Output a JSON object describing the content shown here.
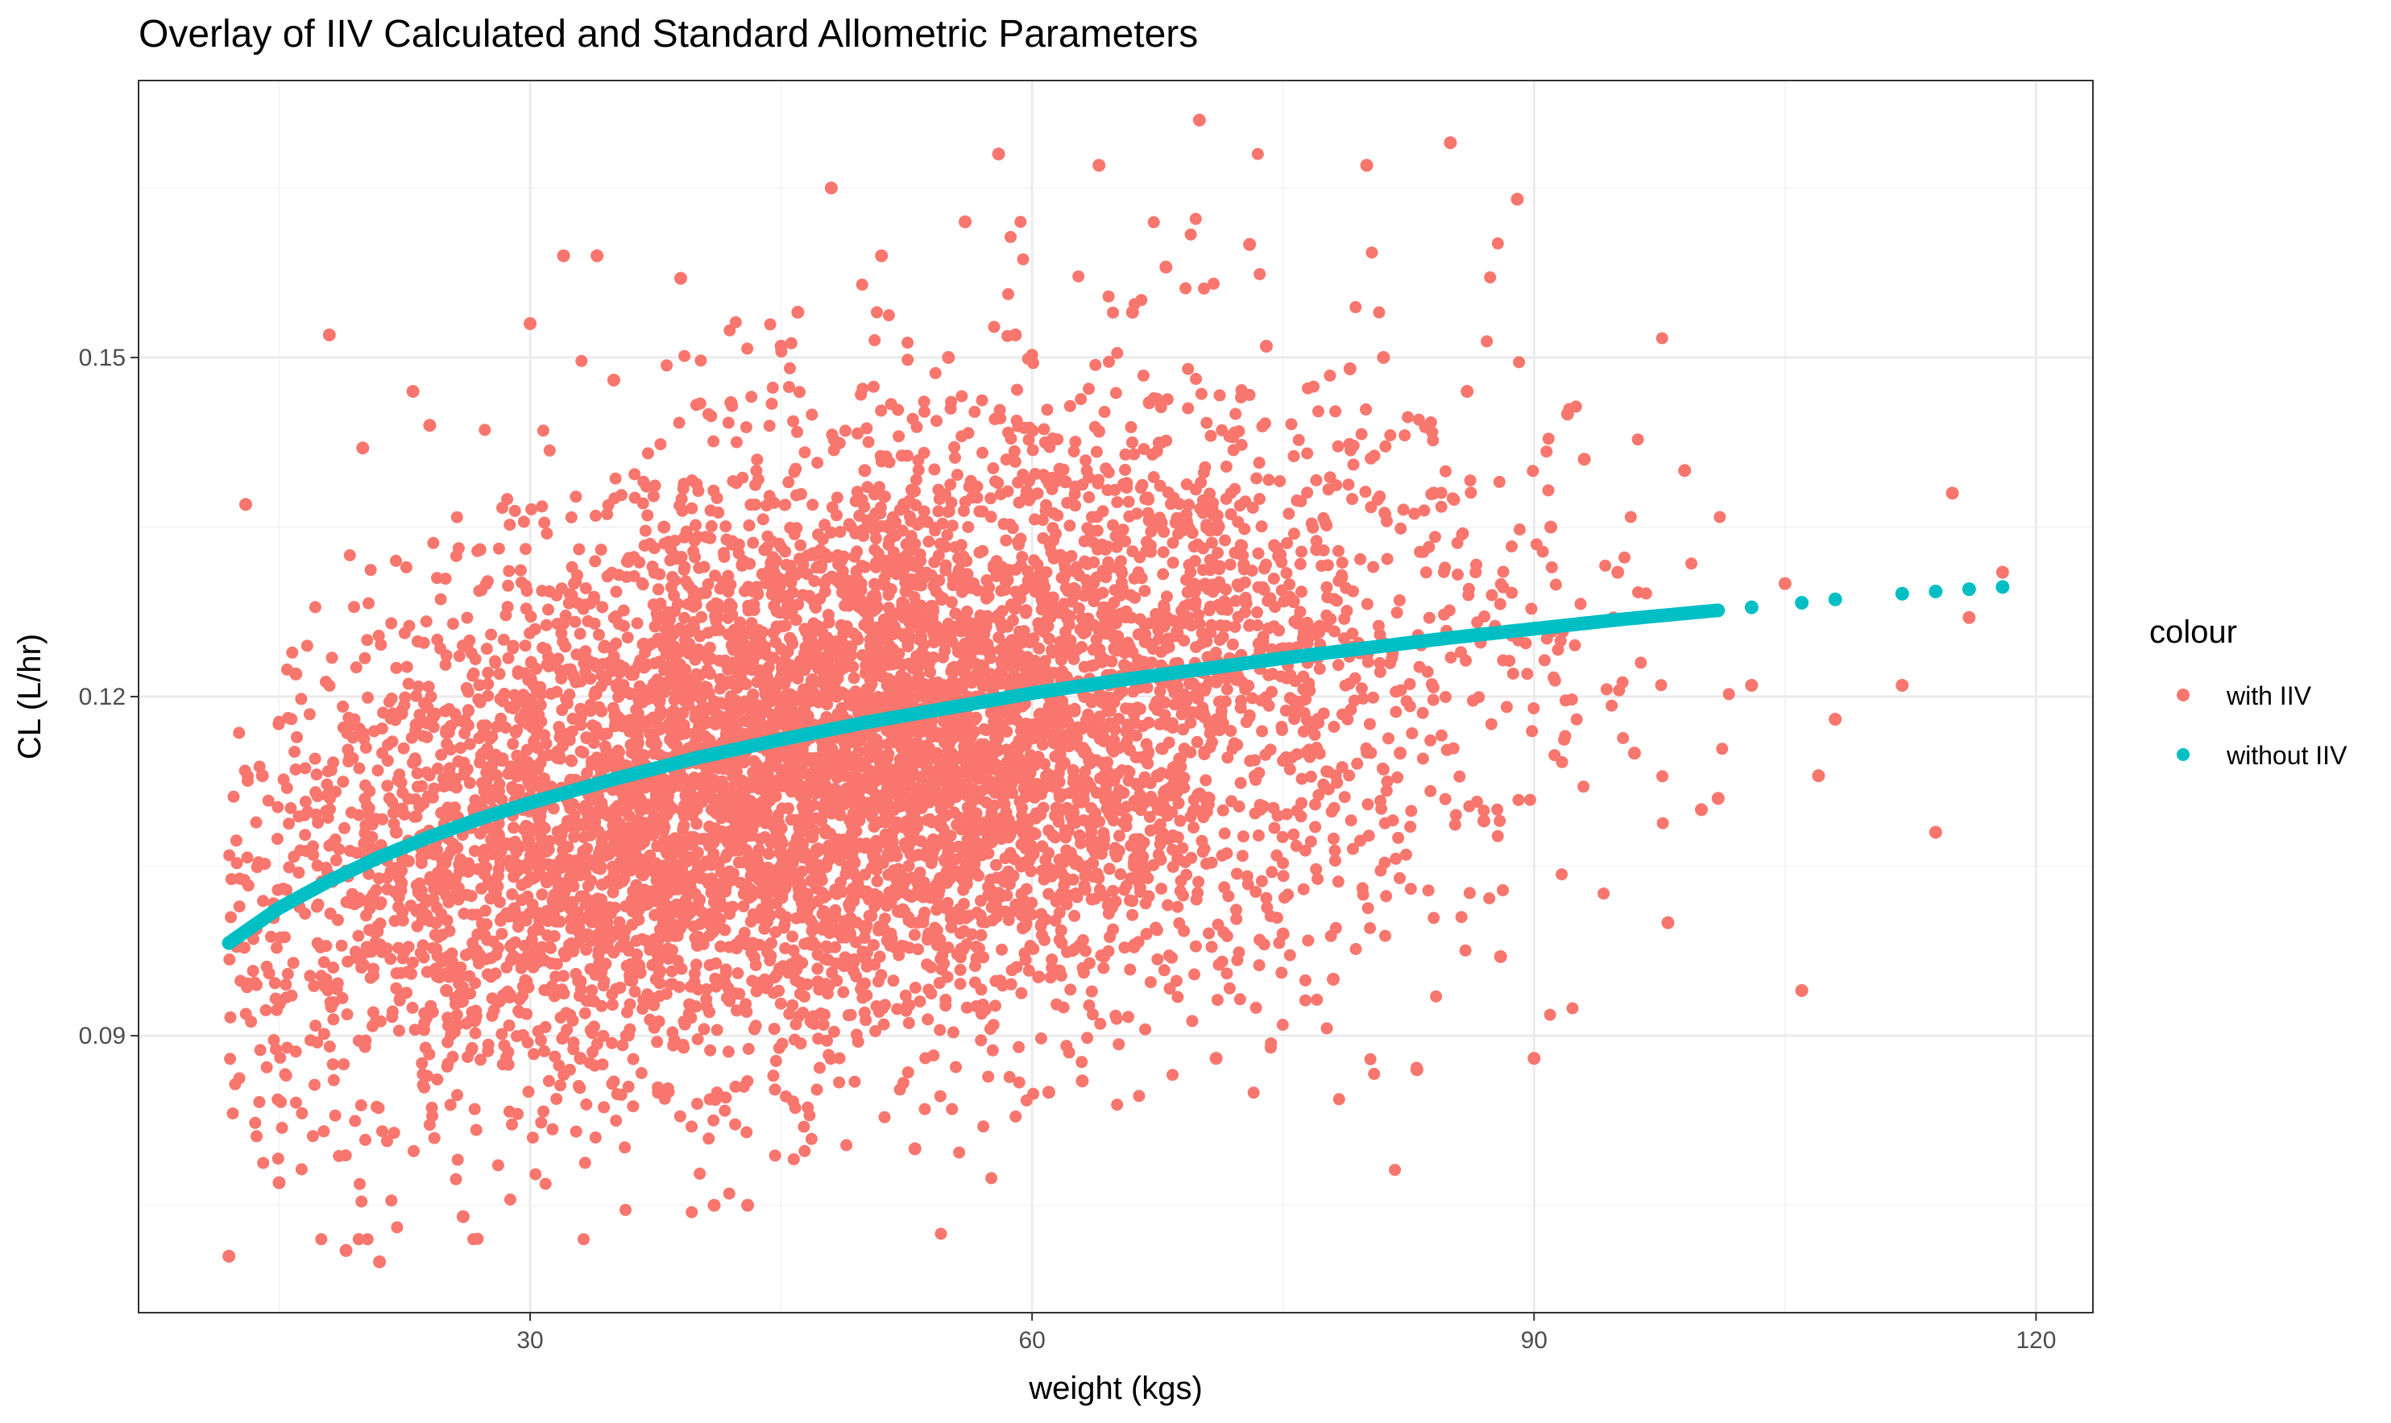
{
  "chart_data": {
    "type": "scatter",
    "title": "Overlay of IIV Calculated and Standard Allometric Parameters",
    "xlabel": "weight (kgs)",
    "ylabel": "CL (L/hr)",
    "xlim": [
      6.6,
      123.4
    ],
    "ylim": [
      0.0655,
      0.1745
    ],
    "x_ticks": [
      30,
      60,
      90,
      120
    ],
    "x_tick_labels": [
      "30",
      "60",
      "90",
      "120"
    ],
    "y_ticks": [
      0.09,
      0.12,
      0.15
    ],
    "y_tick_labels": [
      "0.09",
      "0.12",
      "0.15"
    ],
    "grid": true,
    "legend": {
      "title": "colour",
      "placement": "right",
      "entries": [
        {
          "label": "with IIV",
          "color": "#F8766D"
        },
        {
          "label": "without IIV",
          "color": "#00BFC4"
        }
      ]
    },
    "series": [
      {
        "name": "with IIV",
        "color": "#F8766D",
        "x": [
          12,
          12.5,
          13,
          14,
          15,
          16,
          18,
          20,
          21,
          22,
          24,
          25,
          27,
          29,
          30,
          31,
          32,
          33,
          35,
          36,
          38,
          39,
          40,
          42,
          43,
          44,
          45,
          47,
          48,
          50,
          51,
          52,
          54,
          55,
          56,
          57,
          58,
          60,
          61,
          62,
          64,
          65,
          66,
          68,
          70,
          72,
          73,
          75,
          77,
          79,
          80,
          82,
          84,
          85,
          87,
          89,
          90,
          92,
          95,
          98,
          100,
          103,
          106,
          108,
          112,
          114,
          116,
          118,
          19,
          23,
          26,
          34,
          41,
          46,
          53,
          59,
          63,
          67,
          71,
          74,
          78,
          81,
          83,
          86,
          88,
          91,
          93,
          96,
          99,
          101,
          105,
          107,
          115
        ],
        "y": [
          0.0705,
          0.098,
          0.137,
          0.113,
          0.077,
          0.122,
          0.152,
          0.142,
          0.07,
          0.108,
          0.144,
          0.094,
          0.133,
          0.119,
          0.153,
          0.101,
          0.159,
          0.088,
          0.148,
          0.112,
          0.135,
          0.157,
          0.098,
          0.146,
          0.075,
          0.124,
          0.151,
          0.117,
          0.165,
          0.14,
          0.159,
          0.101,
          0.128,
          0.15,
          0.162,
          0.106,
          0.168,
          0.121,
          0.085,
          0.139,
          0.167,
          0.111,
          0.154,
          0.158,
          0.171,
          0.143,
          0.16,
          0.099,
          0.133,
          0.149,
          0.167,
          0.115,
          0.138,
          0.169,
          0.109,
          0.164,
          0.088,
          0.145,
          0.131,
          0.1,
          0.11,
          0.121,
          0.094,
          0.118,
          0.121,
          0.108,
          0.127,
          0.131,
          0.071,
          0.147,
          0.074,
          0.159,
          0.075,
          0.154,
          0.08,
          0.152,
          0.086,
          0.146,
          0.088,
          0.151,
          0.095,
          0.15,
          0.087,
          0.147,
          0.097,
          0.135,
          0.141,
          0.115,
          0.14,
          0.111,
          0.13,
          0.113,
          0.138
        ]
      },
      {
        "name": "without IIV",
        "color": "#00BFC4",
        "x": [
          12,
          15,
          18,
          21,
          24,
          27,
          30,
          35,
          40,
          45,
          50,
          55,
          60,
          65,
          70,
          75,
          80,
          85,
          90,
          95,
          100,
          103,
          106,
          108,
          112,
          114,
          116,
          118
        ],
        "y": [
          0.0982,
          0.1013,
          0.1037,
          0.1058,
          0.1076,
          0.1092,
          0.1106,
          0.1127,
          0.1146,
          0.1162,
          0.1177,
          0.119,
          0.1203,
          0.1214,
          0.1224,
          0.1234,
          0.1243,
          0.1252,
          0.126,
          0.1268,
          0.1275,
          0.1279,
          0.1283,
          0.1286,
          0.1291,
          0.1293,
          0.1295,
          0.1297
        ]
      }
    ]
  }
}
